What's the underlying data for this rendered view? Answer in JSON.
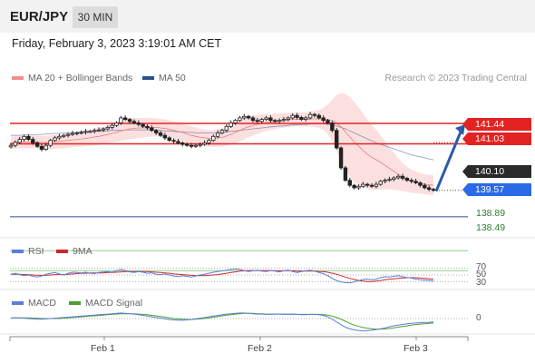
{
  "header": {
    "symbol": "EUR/JPY",
    "timeframe": "30 MIN"
  },
  "datetime": "Friday, February 3, 2023 3:19:01 AM CET",
  "legend": {
    "ma20": "MA 20 + Bollinger Bands",
    "ma50": "MA 50",
    "rsi": "RSI",
    "rsi_ma": "9MA",
    "macd": "MACD",
    "macd_signal": "MACD Signal"
  },
  "copyright": "Research © 2023 Trading Central",
  "colors": {
    "resistance": "#e32222",
    "support": "#2a6ae6",
    "current": "#2a2a2a",
    "target": "#2f7d2f",
    "ma20": "#f07a7a",
    "ma50": "#2c4f8c",
    "rsi": "#5b7fd9",
    "rsi_ma": "#cc2a2a",
    "macd": "#5b7fd9",
    "macd_signal": "#49a02f"
  },
  "chart_data": [
    {
      "type": "candlestick",
      "title": "EUR/JPY",
      "timeframe": "30 MIN",
      "ylim": [
        138.3,
        142.1
      ],
      "xticks": [
        "Feb 1",
        "Feb 2",
        "Feb 3"
      ],
      "price_levels": {
        "resistance": [
          141.44,
          141.03
        ],
        "current": 140.1,
        "support": 139.57,
        "targets": [
          138.89,
          138.49
        ]
      },
      "close": [
        141.0,
        141.06,
        141.12,
        141.18,
        141.12,
        141.05,
        140.98,
        140.92,
        141.0,
        141.1,
        141.15,
        141.18,
        141.2,
        141.22,
        141.24,
        141.25,
        141.26,
        141.28,
        141.28,
        141.3,
        141.31,
        141.33,
        141.36,
        141.4,
        141.45,
        141.55,
        141.52,
        141.48,
        141.45,
        141.42,
        141.38,
        141.35,
        141.3,
        141.25,
        141.2,
        141.15,
        141.1,
        141.08,
        141.05,
        141.02,
        141.0,
        140.98,
        141.0,
        141.02,
        141.05,
        141.1,
        141.18,
        141.25,
        141.3,
        141.38,
        141.45,
        141.5,
        141.55,
        141.58,
        141.55,
        141.5,
        141.48,
        141.52,
        141.55,
        141.5,
        141.48,
        141.5,
        141.52,
        141.55,
        141.6,
        141.56,
        141.52,
        141.55,
        141.62,
        141.6,
        141.55,
        141.5,
        141.45,
        141.3,
        140.95,
        140.55,
        140.3,
        140.2,
        140.15,
        140.18,
        140.22,
        140.2,
        140.18,
        140.22,
        140.28,
        140.3,
        140.32,
        140.35,
        140.38,
        140.34,
        140.3,
        140.28,
        140.25,
        140.2,
        140.15,
        140.12,
        140.1
      ],
      "ma20": [
        141.05,
        141.06,
        141.06,
        141.07,
        141.07,
        141.07,
        141.07,
        141.06,
        141.06,
        141.06,
        141.07,
        141.08,
        141.09,
        141.1,
        141.11,
        141.12,
        141.13,
        141.14,
        141.15,
        141.17,
        141.18,
        141.2,
        141.22,
        141.24,
        141.26,
        141.29,
        141.31,
        141.33,
        141.34,
        141.35,
        141.35,
        141.36,
        141.36,
        141.36,
        141.35,
        141.34,
        141.32,
        141.3,
        141.28,
        141.26,
        141.23,
        141.2,
        141.18,
        141.16,
        141.15,
        141.14,
        141.14,
        141.15,
        141.16,
        141.19,
        141.22,
        141.26,
        141.3,
        141.34,
        141.37,
        141.4,
        141.42,
        141.44,
        141.46,
        141.47,
        141.48,
        141.49,
        141.5,
        141.51,
        141.52,
        141.52,
        141.52,
        141.52,
        141.53,
        141.53,
        141.53,
        141.53,
        141.52,
        141.5,
        141.45,
        141.37,
        141.27,
        141.17,
        141.07,
        140.98,
        140.9,
        140.82,
        140.76,
        140.71,
        140.66,
        140.6,
        140.54,
        140.48,
        140.42,
        140.36,
        140.32,
        140.28,
        140.26,
        140.24,
        140.22,
        140.21,
        140.2
      ],
      "ma50": [
        141.2,
        141.2,
        141.2,
        141.21,
        141.21,
        141.21,
        141.22,
        141.22,
        141.23,
        141.23,
        141.24,
        141.24,
        141.25,
        141.25,
        141.26,
        141.26,
        141.27,
        141.27,
        141.28,
        141.28,
        141.29,
        141.29,
        141.29,
        141.3,
        141.3,
        141.3,
        141.31,
        141.31,
        141.31,
        141.31,
        141.31,
        141.31,
        141.31,
        141.3,
        141.3,
        141.29,
        141.29,
        141.28,
        141.27,
        141.27,
        141.26,
        141.26,
        141.25,
        141.25,
        141.25,
        141.25,
        141.25,
        141.25,
        141.26,
        141.27,
        141.28,
        141.29,
        141.3,
        141.31,
        141.32,
        141.33,
        141.34,
        141.35,
        141.36,
        141.37,
        141.38,
        141.39,
        141.39,
        141.4,
        141.41,
        141.41,
        141.42,
        141.42,
        141.43,
        141.43,
        141.43,
        141.43,
        141.42,
        141.41,
        141.39,
        141.36,
        141.33,
        141.29,
        141.25,
        141.21,
        141.17,
        141.13,
        141.09,
        141.05,
        141.02,
        140.99,
        140.96,
        140.93,
        140.9,
        140.87,
        140.84,
        140.81,
        140.79,
        140.77,
        140.75,
        140.73,
        140.71
      ],
      "bollinger_width": [
        0.12,
        0.12,
        0.12,
        0.13,
        0.13,
        0.13,
        0.13,
        0.13,
        0.14,
        0.14,
        0.14,
        0.14,
        0.15,
        0.15,
        0.15,
        0.15,
        0.16,
        0.16,
        0.16,
        0.17,
        0.17,
        0.17,
        0.18,
        0.18,
        0.19,
        0.2,
        0.2,
        0.21,
        0.21,
        0.2,
        0.2,
        0.19,
        0.19,
        0.18,
        0.18,
        0.18,
        0.18,
        0.18,
        0.18,
        0.18,
        0.18,
        0.18,
        0.18,
        0.17,
        0.17,
        0.17,
        0.17,
        0.18,
        0.19,
        0.2,
        0.21,
        0.22,
        0.22,
        0.22,
        0.21,
        0.2,
        0.19,
        0.18,
        0.17,
        0.16,
        0.16,
        0.15,
        0.15,
        0.14,
        0.14,
        0.14,
        0.14,
        0.14,
        0.15,
        0.16,
        0.18,
        0.22,
        0.3,
        0.42,
        0.56,
        0.68,
        0.76,
        0.8,
        0.8,
        0.78,
        0.74,
        0.7,
        0.65,
        0.6,
        0.54,
        0.48,
        0.42,
        0.37,
        0.32,
        0.28,
        0.25,
        0.23,
        0.22,
        0.21,
        0.2,
        0.2,
        0.2
      ],
      "forecast_arrow": {
        "from": 140.1,
        "to": 141.44
      }
    },
    {
      "type": "line",
      "name": "RSI",
      "ylim": [
        10,
        90
      ],
      "levels": [
        70,
        50,
        30
      ],
      "series": [
        {
          "name": "RSI",
          "values": [
            52,
            55,
            51,
            48,
            50,
            46,
            44,
            47,
            52,
            55,
            57,
            53,
            50,
            55,
            58,
            57,
            56,
            58,
            55,
            54,
            57,
            59,
            60,
            58,
            62,
            66,
            63,
            59,
            57,
            60,
            58,
            55,
            56,
            52,
            51,
            53,
            50,
            47,
            45,
            48,
            46,
            44,
            47,
            50,
            52,
            55,
            58,
            60,
            62,
            64,
            66,
            67,
            66,
            63,
            60,
            62,
            64,
            61,
            60,
            63,
            61,
            59,
            62,
            64,
            60,
            57,
            60,
            62,
            64,
            61,
            57,
            54,
            48,
            40,
            34,
            30,
            28,
            27,
            30,
            34,
            37,
            38,
            36,
            38,
            42,
            45,
            44,
            46,
            48,
            45,
            43,
            41,
            38,
            36,
            35,
            34,
            33
          ]
        },
        {
          "name": "9MA",
          "values": [
            52,
            52,
            52,
            51,
            51,
            50,
            49,
            49,
            49,
            50,
            51,
            51,
            51,
            52,
            53,
            54,
            55,
            55,
            56,
            56,
            56,
            56,
            57,
            57,
            58,
            59,
            60,
            60,
            60,
            60,
            60,
            60,
            59,
            58,
            57,
            56,
            55,
            53,
            52,
            51,
            50,
            49,
            48,
            48,
            48,
            49,
            50,
            51,
            53,
            55,
            57,
            59,
            61,
            62,
            63,
            63,
            63,
            63,
            63,
            63,
            62,
            62,
            62,
            62,
            62,
            61,
            61,
            61,
            61,
            61,
            60,
            60,
            58,
            55,
            52,
            48,
            44,
            40,
            37,
            34,
            32,
            31,
            31,
            32,
            34,
            36,
            38,
            39,
            40,
            41,
            42,
            42,
            42,
            41,
            40,
            39,
            38
          ]
        }
      ]
    },
    {
      "type": "line",
      "name": "MACD",
      "ylim": [
        -0.5,
        0.4
      ],
      "levels": [
        0
      ],
      "series": [
        {
          "name": "MACD",
          "values": [
            0.01,
            0.02,
            0.02,
            0.01,
            0.0,
            -0.01,
            -0.02,
            -0.02,
            -0.01,
            0.0,
            0.01,
            0.02,
            0.03,
            0.04,
            0.05,
            0.06,
            0.07,
            0.08,
            0.09,
            0.1,
            0.11,
            0.12,
            0.13,
            0.14,
            0.15,
            0.16,
            0.15,
            0.14,
            0.13,
            0.11,
            0.09,
            0.07,
            0.05,
            0.03,
            0.01,
            -0.01,
            -0.03,
            -0.04,
            -0.05,
            -0.05,
            -0.04,
            -0.03,
            -0.01,
            0.01,
            0.03,
            0.05,
            0.07,
            0.09,
            0.11,
            0.13,
            0.14,
            0.15,
            0.16,
            0.16,
            0.15,
            0.14,
            0.13,
            0.13,
            0.12,
            0.12,
            0.13,
            0.13,
            0.12,
            0.12,
            0.13,
            0.12,
            0.11,
            0.11,
            0.12,
            0.12,
            0.11,
            0.09,
            0.05,
            -0.02,
            -0.1,
            -0.18,
            -0.25,
            -0.3,
            -0.33,
            -0.35,
            -0.36,
            -0.35,
            -0.34,
            -0.32,
            -0.3,
            -0.27,
            -0.24,
            -0.21,
            -0.19,
            -0.17,
            -0.15,
            -0.14,
            -0.13,
            -0.12,
            -0.11,
            -0.11,
            -0.1
          ]
        },
        {
          "name": "MACD Signal",
          "values": [
            0.02,
            0.02,
            0.02,
            0.02,
            0.02,
            0.01,
            0.01,
            0.0,
            0.0,
            0.0,
            0.0,
            0.0,
            0.01,
            0.02,
            0.03,
            0.04,
            0.05,
            0.06,
            0.07,
            0.08,
            0.09,
            0.1,
            0.11,
            0.12,
            0.13,
            0.14,
            0.14,
            0.14,
            0.14,
            0.13,
            0.12,
            0.11,
            0.09,
            0.08,
            0.06,
            0.04,
            0.02,
            0.0,
            -0.01,
            -0.02,
            -0.03,
            -0.03,
            -0.02,
            -0.01,
            0.0,
            0.02,
            0.04,
            0.06,
            0.08,
            0.1,
            0.11,
            0.13,
            0.14,
            0.15,
            0.15,
            0.15,
            0.14,
            0.14,
            0.13,
            0.13,
            0.13,
            0.13,
            0.13,
            0.13,
            0.13,
            0.12,
            0.12,
            0.12,
            0.12,
            0.12,
            0.12,
            0.11,
            0.1,
            0.07,
            0.03,
            -0.02,
            -0.08,
            -0.14,
            -0.19,
            -0.23,
            -0.26,
            -0.28,
            -0.3,
            -0.31,
            -0.31,
            -0.3,
            -0.29,
            -0.27,
            -0.25,
            -0.23,
            -0.21,
            -0.19,
            -0.17,
            -0.16,
            -0.15,
            -0.14,
            -0.13
          ]
        }
      ]
    }
  ]
}
